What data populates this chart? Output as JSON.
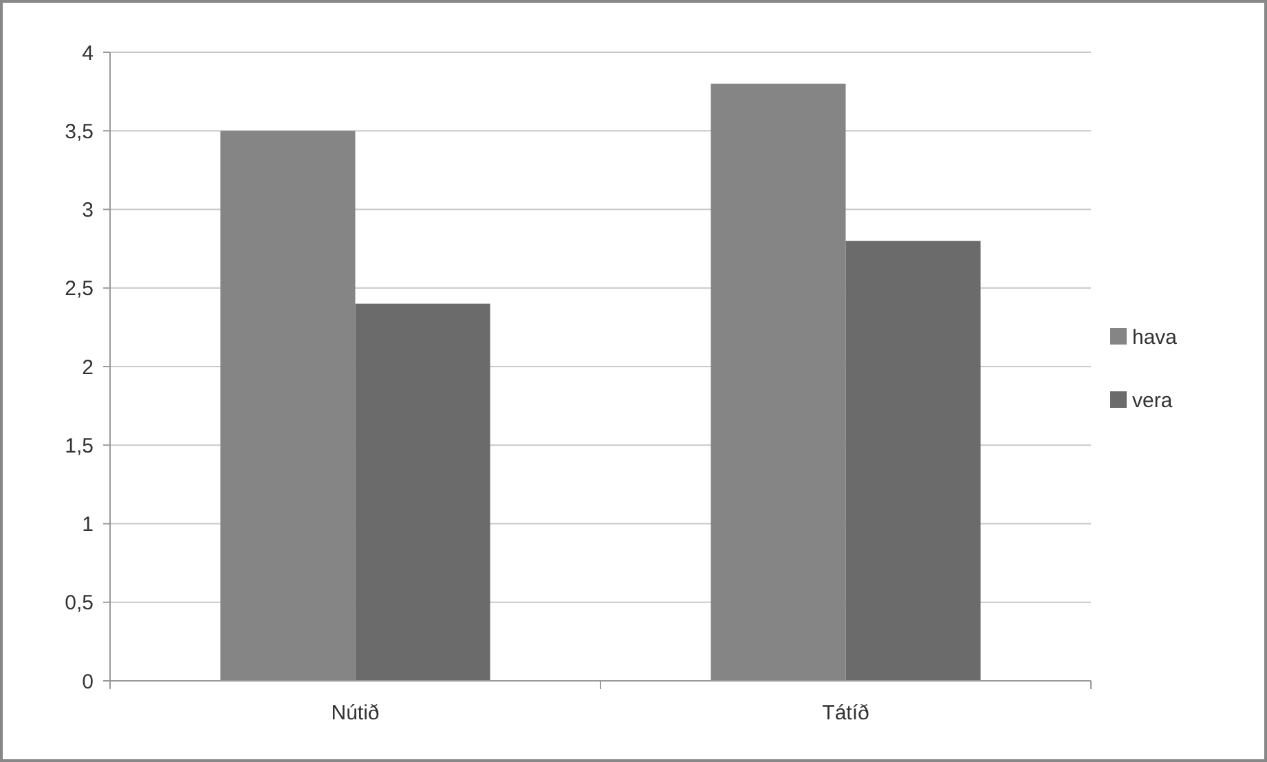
{
  "chart_data": {
    "type": "bar",
    "categories": [
      "Nútið",
      "Tátíð"
    ],
    "series": [
      {
        "name": "hava",
        "color": "#858585",
        "values": [
          3.5,
          3.8
        ]
      },
      {
        "name": "vera",
        "color": "#6b6b6b",
        "values": [
          2.4,
          2.8
        ]
      }
    ],
    "ylim": [
      0,
      4
    ],
    "yticks": [
      0,
      {
        "value": 0.5,
        "label": "0,5"
      },
      1,
      {
        "value": 1.5,
        "label": "1,5"
      },
      2,
      {
        "value": 2.5,
        "label": "2,5"
      },
      3,
      {
        "value": 3.5,
        "label": "3,5"
      },
      4
    ],
    "grid": "y",
    "legend": "right"
  }
}
